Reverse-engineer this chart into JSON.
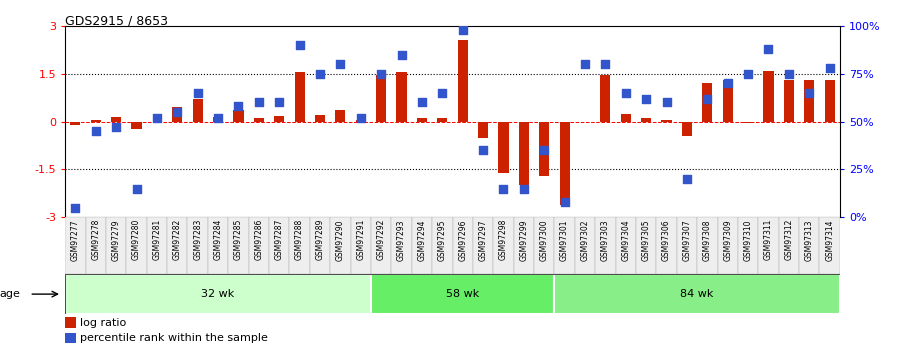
{
  "title": "GDS2915 / 8653",
  "samples": [
    "GSM97277",
    "GSM97278",
    "GSM97279",
    "GSM97280",
    "GSM97281",
    "GSM97282",
    "GSM97283",
    "GSM97284",
    "GSM97285",
    "GSM97286",
    "GSM97287",
    "GSM97288",
    "GSM97289",
    "GSM97290",
    "GSM97291",
    "GSM97292",
    "GSM97293",
    "GSM97294",
    "GSM97295",
    "GSM97296",
    "GSM97297",
    "GSM97298",
    "GSM97299",
    "GSM97300",
    "GSM97301",
    "GSM97302",
    "GSM97303",
    "GSM97304",
    "GSM97305",
    "GSM97306",
    "GSM97307",
    "GSM97308",
    "GSM97309",
    "GSM97310",
    "GSM97311",
    "GSM97312",
    "GSM97313",
    "GSM97314"
  ],
  "log_ratio": [
    -0.12,
    0.05,
    0.15,
    -0.22,
    0.0,
    0.45,
    0.7,
    0.15,
    0.35,
    0.12,
    0.18,
    1.55,
    0.2,
    0.35,
    0.05,
    1.45,
    1.55,
    0.1,
    0.12,
    2.55,
    -0.5,
    -1.6,
    -2.0,
    -1.7,
    -2.6,
    0.0,
    1.45,
    0.25,
    0.1,
    0.05,
    -0.45,
    1.2,
    1.3,
    -0.05,
    1.6,
    1.3,
    1.3,
    1.3
  ],
  "percentile": [
    5,
    45,
    47,
    15,
    52,
    55,
    65,
    52,
    58,
    60,
    60,
    90,
    75,
    80,
    52,
    75,
    85,
    60,
    65,
    98,
    35,
    15,
    15,
    35,
    8,
    80,
    80,
    65,
    62,
    60,
    20,
    62,
    70,
    75,
    88,
    75,
    65,
    78
  ],
  "groups": [
    {
      "label": "32 wk",
      "start": 0,
      "end": 15,
      "color": "#ccffcc"
    },
    {
      "label": "58 wk",
      "start": 15,
      "end": 24,
      "color": "#66ee66"
    },
    {
      "label": "84 wk",
      "start": 24,
      "end": 38,
      "color": "#88ee88"
    }
  ],
  "ylim": [
    -3,
    3
  ],
  "y2lim": [
    0,
    100
  ],
  "yticks": [
    -3,
    -1.5,
    0,
    1.5,
    3
  ],
  "y2ticks": [
    0,
    25,
    50,
    75,
    100
  ],
  "y2ticklabels": [
    "0%",
    "25%",
    "50%",
    "75%",
    "100%"
  ],
  "hlines": [
    -1.5,
    1.5
  ],
  "bar_color": "#cc2200",
  "dot_color": "#3355cc",
  "bar_width": 0.5,
  "dot_size": 28,
  "legend_log_ratio": "log ratio",
  "legend_percentile": "percentile rank within the sample",
  "age_label": "age"
}
